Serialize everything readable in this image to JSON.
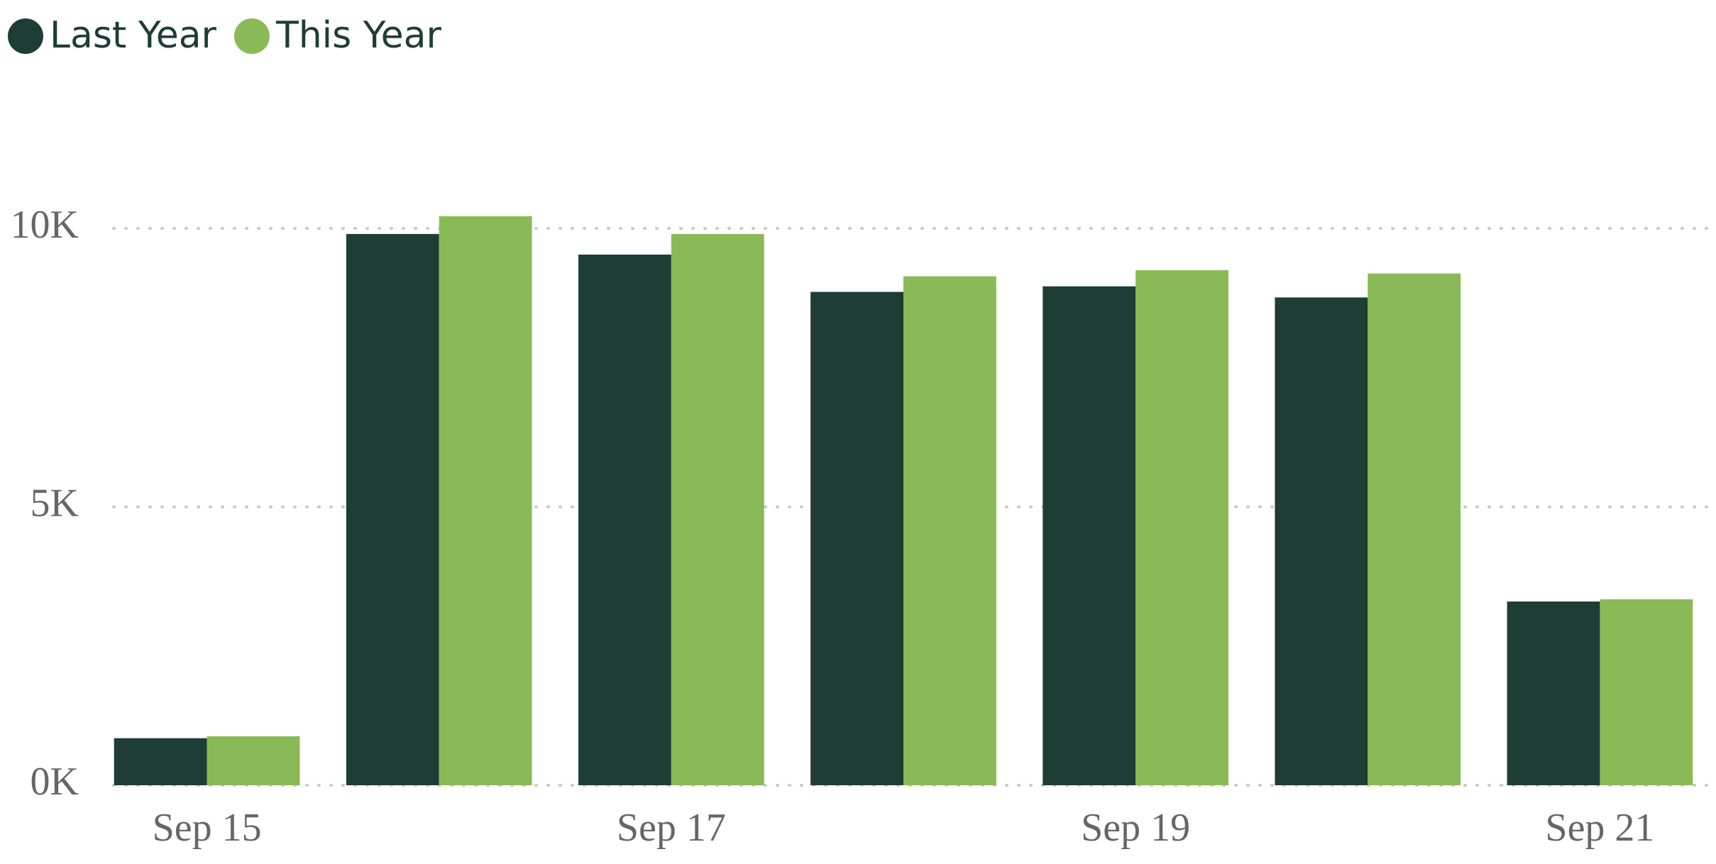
{
  "chart_data": {
    "type": "bar",
    "categories": [
      "Sep 15",
      null,
      "Sep 17",
      null,
      "Sep 19",
      null,
      "Sep 21"
    ],
    "series": [
      {
        "name": "Last Year",
        "color": "#1e3d34",
        "values": [
          845,
          9900,
          9530,
          8860,
          8960,
          8760,
          3300
        ]
      },
      {
        "name": "This Year",
        "color": "#8aba55",
        "values": [
          880,
          10220,
          9900,
          9140,
          9250,
          9190,
          3340
        ]
      }
    ],
    "ylim": [
      0,
      10500
    ],
    "yticks": [
      {
        "value": 0,
        "label": "0K"
      },
      {
        "value": 5000,
        "label": "5K"
      },
      {
        "value": 10000,
        "label": "10K"
      }
    ],
    "grid": true
  }
}
